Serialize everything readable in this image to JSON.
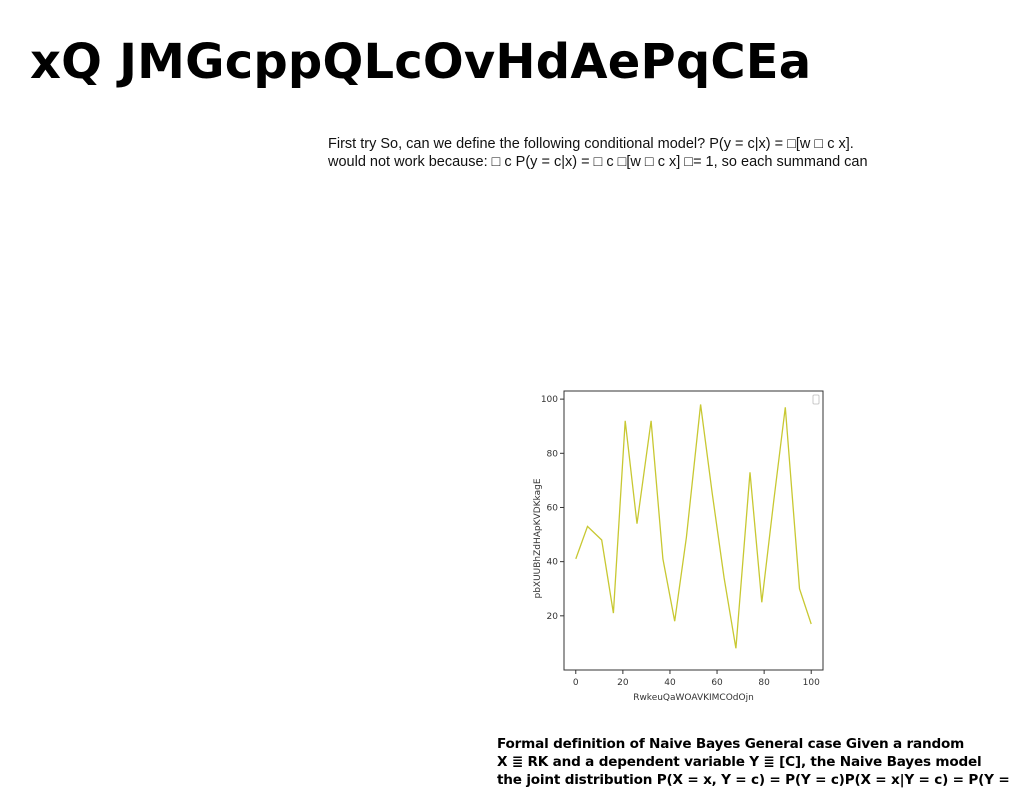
{
  "title": "xQ JMGcppQLcOvHdAePqCEa",
  "body": {
    "lines": [
      "First try So, can we define the following conditional model? P(y = c|x) = □[w □ c x].",
      "would not work because: □ c P(y = c|x) = □ c □[w □ c x] □= 1, so each summand can"
    ]
  },
  "chart_data": {
    "type": "line",
    "x": [
      0,
      5,
      11,
      16,
      21,
      26,
      32,
      37,
      42,
      47,
      53,
      58,
      63,
      68,
      74,
      79,
      84,
      89,
      95,
      100
    ],
    "series": [
      {
        "values": [
          41,
          53,
          48,
          21,
          92,
          54,
          92,
          41,
          18,
          49,
          98,
          65,
          34,
          8,
          73,
          25,
          62,
          97,
          30,
          17
        ],
        "color": "#c8c832"
      }
    ],
    "xlabel": "RwkeuQaWOAVKIMCOdOjn",
    "ylabel": "pbXUUBhZdHApKVDKkagE",
    "xlim": [
      -5,
      105
    ],
    "ylim": [
      0,
      103
    ],
    "xticks": [
      0,
      20,
      40,
      60,
      80,
      100
    ],
    "yticks": [
      20,
      40,
      60,
      80,
      100
    ],
    "grid": false,
    "legend": "top-right"
  },
  "caption": {
    "lines": [
      "Formal definition of Naive Bayes General case Given a random",
      "X ≣ RK and a dependent variable Y ≣ [C], the Naive Bayes model",
      "the joint distribution P(X = x, Y = c) = P(Y = c)P(X = x|Y = c) = P(Y ="
    ]
  }
}
